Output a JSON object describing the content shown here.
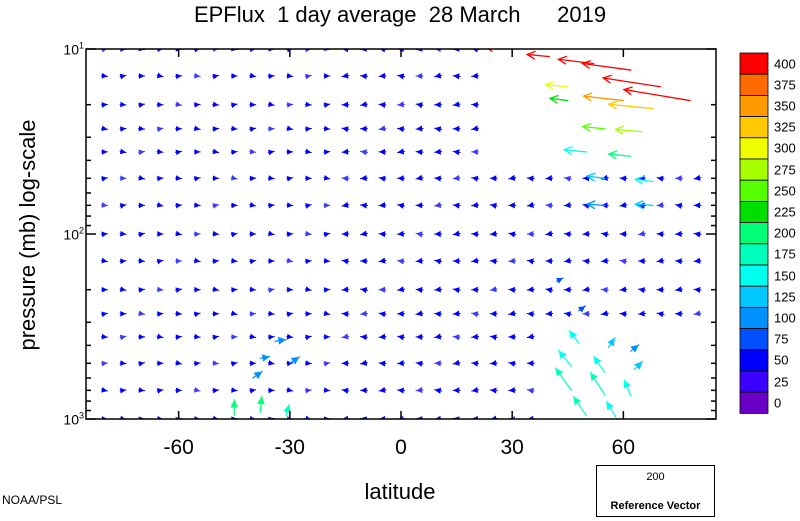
{
  "title": "EPFlux  1 day average  28 March      2019",
  "credit": "NOAA/PSL",
  "chart_data": {
    "type": "quiver",
    "xlabel": "latitude",
    "ylabel": "pressure (mb)  log-scale",
    "x_ticks": [
      -60,
      -30,
      0,
      30,
      60
    ],
    "x_tick_labels": [
      "-60",
      "-30",
      "0",
      "30",
      "60"
    ],
    "xlim": [
      -85,
      85
    ],
    "ylim": [
      1000,
      10
    ],
    "y_scale": "log",
    "y_tick_labels": [
      {
        "base": "10",
        "exp": "1",
        "value": 10
      },
      {
        "base": "10",
        "exp": "2",
        "value": 100
      },
      {
        "base": "10",
        "exp": "3",
        "value": 1000
      }
    ],
    "pressure_levels": [
      10,
      14,
      20,
      27,
      36,
      50,
      70,
      100,
      140,
      200,
      270,
      360,
      500,
      700,
      1000
    ],
    "colorbar": {
      "labels": [
        "400",
        "375",
        "350",
        "325",
        "300",
        "275",
        "250",
        "225",
        "200",
        "175",
        "150",
        "125",
        "100",
        "75",
        "50",
        "25",
        "0"
      ],
      "colors": [
        "#ff0000",
        "#ff6a00",
        "#ff9900",
        "#ffc800",
        "#f0ff00",
        "#a8ff00",
        "#55ff00",
        "#00e000",
        "#00ff77",
        "#00ffbb",
        "#00ffee",
        "#00c8ff",
        "#0090ff",
        "#0050ff",
        "#0000ff",
        "#3c00ff",
        "#6a00c8"
      ]
    },
    "reference_vector": {
      "value": "200",
      "label": "Reference Vector",
      "color": "#22ff66"
    },
    "strong_arrows_nh": [
      {
        "lat": 28,
        "p": 10,
        "u": -9,
        "v": 1,
        "mag": 400
      },
      {
        "lat": 40,
        "p": 11,
        "u": -10,
        "v": 1,
        "mag": 400
      },
      {
        "lat": 52,
        "p": 12,
        "u": -16,
        "v": 2,
        "mag": 420
      },
      {
        "lat": 62,
        "p": 13,
        "u": -22,
        "v": 3,
        "mag": 430
      },
      {
        "lat": 70,
        "p": 16,
        "u": -26,
        "v": 4,
        "mag": 430
      },
      {
        "lat": 78,
        "p": 19,
        "u": -30,
        "v": 5,
        "mag": 430
      },
      {
        "lat": 45,
        "p": 16,
        "u": -10,
        "v": 1,
        "mag": 300
      },
      {
        "lat": 60,
        "p": 19,
        "u": -18,
        "v": 2,
        "mag": 340
      },
      {
        "lat": 68,
        "p": 21,
        "u": -20,
        "v": 2,
        "mag": 330
      },
      {
        "lat": 45,
        "p": 19,
        "u": -8,
        "v": 1,
        "mag": 220
      },
      {
        "lat": 55,
        "p": 27,
        "u": -10,
        "v": 1,
        "mag": 240
      },
      {
        "lat": 65,
        "p": 28,
        "u": -12,
        "v": 1,
        "mag": 280
      },
      {
        "lat": 50,
        "p": 36,
        "u": -10,
        "v": 1,
        "mag": 150
      },
      {
        "lat": 62,
        "p": 38,
        "u": -10,
        "v": 1,
        "mag": 190
      },
      {
        "lat": 55,
        "p": 50,
        "u": -8,
        "v": 1,
        "mag": 125
      },
      {
        "lat": 68,
        "p": 52,
        "u": -8,
        "v": 1,
        "mag": 150
      },
      {
        "lat": 55,
        "p": 70,
        "u": -8,
        "v": 0.5,
        "mag": 110
      },
      {
        "lat": 68,
        "p": 70,
        "u": -8,
        "v": 0.5,
        "mag": 120
      }
    ],
    "tropospheric_arrows": [
      {
        "lat": 48,
        "p": 390,
        "u": -6,
        "v": 8,
        "mag": 150
      },
      {
        "lat": 56,
        "p": 410,
        "u": 4,
        "v": 6,
        "mag": 120
      },
      {
        "lat": 62,
        "p": 430,
        "u": 5,
        "v": 4,
        "mag": 110
      },
      {
        "lat": 46,
        "p": 520,
        "u": -8,
        "v": 10,
        "mag": 160
      },
      {
        "lat": 55,
        "p": 560,
        "u": -7,
        "v": 10,
        "mag": 160
      },
      {
        "lat": 63,
        "p": 540,
        "u": 5,
        "v": 5,
        "mag": 120
      },
      {
        "lat": 46,
        "p": 700,
        "u": -10,
        "v": 14,
        "mag": 170
      },
      {
        "lat": 55,
        "p": 740,
        "u": -9,
        "v": 14,
        "mag": 170
      },
      {
        "lat": 62,
        "p": 750,
        "u": -4,
        "v": 10,
        "mag": 150
      },
      {
        "lat": 50,
        "p": 960,
        "u": -8,
        "v": 12,
        "mag": 170
      },
      {
        "lat": 58,
        "p": 980,
        "u": -6,
        "v": 10,
        "mag": 160
      },
      {
        "lat": -45,
        "p": 960,
        "u": 0,
        "v": 10,
        "mag": 190
      },
      {
        "lat": -38,
        "p": 920,
        "u": 1,
        "v": 10,
        "mag": 190
      },
      {
        "lat": -31,
        "p": 960,
        "u": 2,
        "v": 7,
        "mag": 170
      },
      {
        "lat": -38,
        "p": 470,
        "u": 6,
        "v": 1,
        "mag": 110
      },
      {
        "lat": -34,
        "p": 380,
        "u": 7,
        "v": 1,
        "mag": 100
      },
      {
        "lat": -40,
        "p": 600,
        "u": 6,
        "v": 4,
        "mag": 110
      },
      {
        "lat": -30,
        "p": 500,
        "u": 6,
        "v": 4,
        "mag": 100
      },
      {
        "lat": 42,
        "p": 180,
        "u": 4,
        "v": 2,
        "mag": 70
      },
      {
        "lat": 48,
        "p": 260,
        "u": 4,
        "v": 3,
        "mag": 70
      }
    ]
  }
}
